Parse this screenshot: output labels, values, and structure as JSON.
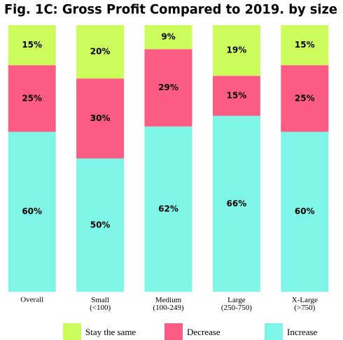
{
  "chart_data": {
    "type": "stacked_bar_100",
    "title": "Fig. 1C: Gross Profit Compared to 2019. by size",
    "categories": [
      "Overall",
      "Small\n(<100)",
      "Medium\n(100-249)",
      "Large\n(250-750)",
      "X-Large\n(>750)"
    ],
    "ylim": [
      0,
      100
    ],
    "series": [
      {
        "name": "Stay the same",
        "color": "#ccfc5c",
        "values": [
          15,
          20,
          9,
          19,
          15
        ],
        "value_labels": [
          "15%",
          "20%",
          "9%",
          "19%",
          "15%"
        ]
      },
      {
        "name": "Decrease",
        "color": "#fc5c84",
        "values": [
          25,
          30,
          29,
          15,
          25
        ],
        "value_labels": [
          "25%",
          "30%",
          "29%",
          "15%",
          "25%"
        ]
      },
      {
        "name": "Increase",
        "color": "#7ff5e8",
        "values": [
          60,
          50,
          62,
          66,
          60
        ],
        "value_labels": [
          "60%",
          "50%",
          "62%",
          "66%",
          "60%"
        ]
      }
    ]
  }
}
